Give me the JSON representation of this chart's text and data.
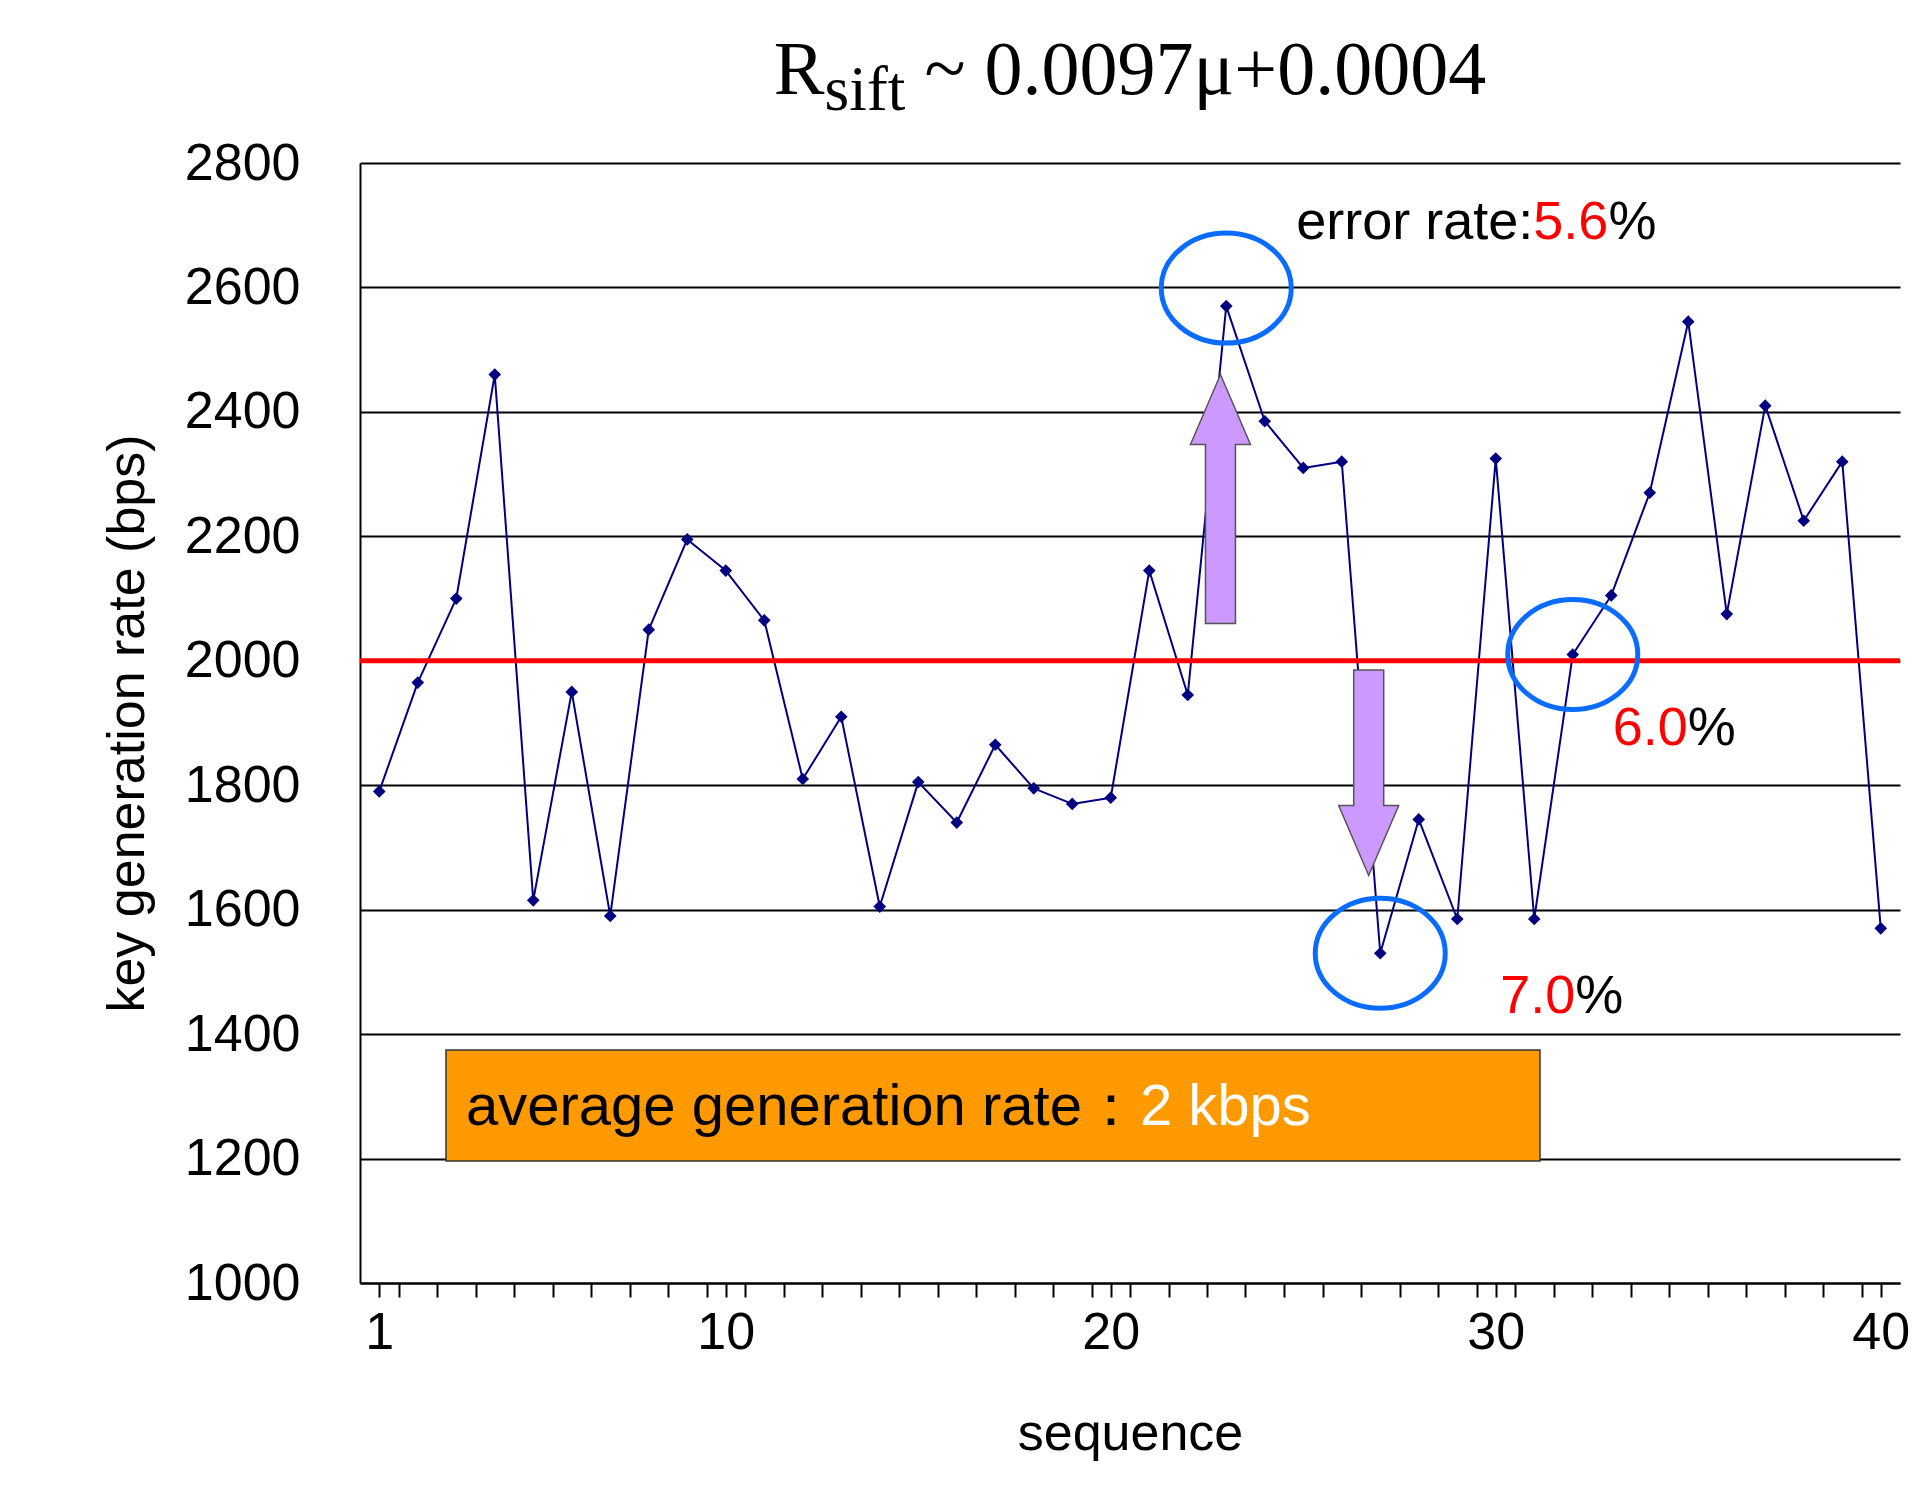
{
  "chart_data": {
    "type": "line",
    "title": "R$_{sift}$ ~ 0.0097μ+0.0004",
    "xlabel": "sequence",
    "ylabel": "key generation rate (bps)",
    "x": [
      1,
      2,
      3,
      4,
      5,
      6,
      7,
      8,
      9,
      10,
      11,
      12,
      13,
      14,
      15,
      16,
      17,
      18,
      19,
      20,
      21,
      22,
      23,
      24,
      25,
      26,
      27,
      28,
      29,
      30,
      31,
      32,
      33,
      34,
      35,
      36,
      37,
      38,
      39,
      40
    ],
    "series": [
      {
        "color": "#000080",
        "values": [
          1790,
          1965,
          2100,
          2460,
          1615,
          1950,
          1590,
          2050,
          2195,
          2145,
          2065,
          1810,
          1910,
          1605,
          1805,
          1740,
          1865,
          1795,
          1770,
          1780,
          2145,
          1945,
          2570,
          2385,
          2310,
          2320,
          1530,
          1745,
          1585,
          2325,
          1585,
          2010,
          2105,
          2270,
          2545,
          2075,
          2410,
          2225,
          2320,
          1570
        ]
      }
    ],
    "xlim": [
      0.5,
      40.5
    ],
    "xticks": [
      1,
      {
        "value": 1.5,
        "label": null
      },
      {
        "value": 2.5,
        "label": null
      },
      {
        "value": 3.5,
        "label": null
      },
      {
        "value": 4.5,
        "label": null
      },
      {
        "value": 5.5,
        "label": null
      },
      {
        "value": 6.5,
        "label": null
      },
      {
        "value": 7.5,
        "label": null
      },
      {
        "value": 8.5,
        "label": null
      },
      {
        "value": 9.5,
        "label": null
      },
      10,
      {
        "value": 10.5,
        "label": null
      },
      {
        "value": 11.5,
        "label": null
      },
      {
        "value": 12.5,
        "label": null
      },
      {
        "value": 13.5,
        "label": null
      },
      {
        "value": 14.5,
        "label": null
      },
      {
        "value": 15.5,
        "label": null
      },
      {
        "value": 16.5,
        "label": null
      },
      {
        "value": 17.5,
        "label": null
      },
      {
        "value": 18.5,
        "label": null
      },
      {
        "value": 19.5,
        "label": null
      },
      20,
      {
        "value": 20.5,
        "label": null
      },
      {
        "value": 21.5,
        "label": null
      },
      {
        "value": 22.5,
        "label": null
      },
      {
        "value": 23.5,
        "label": null
      },
      {
        "value": 24.5,
        "label": null
      },
      {
        "value": 25.5,
        "label": null
      },
      {
        "value": 26.5,
        "label": null
      },
      {
        "value": 27.5,
        "label": null
      },
      {
        "value": 28.5,
        "label": null
      },
      {
        "value": 29.5,
        "label": null
      },
      30,
      {
        "value": 30.5,
        "label": null
      },
      {
        "value": 31.5,
        "label": null
      },
      {
        "value": 32.5,
        "label": null
      },
      {
        "value": 33.5,
        "label": null
      },
      {
        "value": 34.5,
        "label": null
      },
      {
        "value": 35.5,
        "label": null
      },
      {
        "value": 36.5,
        "label": null
      },
      {
        "value": 37.5,
        "label": null
      },
      {
        "value": 38.5,
        "label": null
      },
      {
        "value": 39.5,
        "label": null
      },
      40
    ],
    "ylim": [
      1000,
      2800
    ],
    "yticks": [
      1000,
      1200,
      1400,
      1600,
      1800,
      2000,
      2200,
      2400,
      2600,
      2800
    ],
    "grid": "y",
    "marker": "diamond",
    "line_style": "solid",
    "ref_lines": [
      {
        "axis": "y",
        "value": 2000,
        "color": "#ff0000"
      }
    ],
    "annotations": [
      {
        "text": "error rate:5.6%",
        "x": 23,
        "y": 2570
      },
      {
        "text": "6.0%",
        "x": 32,
        "y": 2010
      },
      {
        "text": "7.0%",
        "x": 27,
        "y": 1530
      },
      "average generation rate：2 kbps"
    ]
  }
}
